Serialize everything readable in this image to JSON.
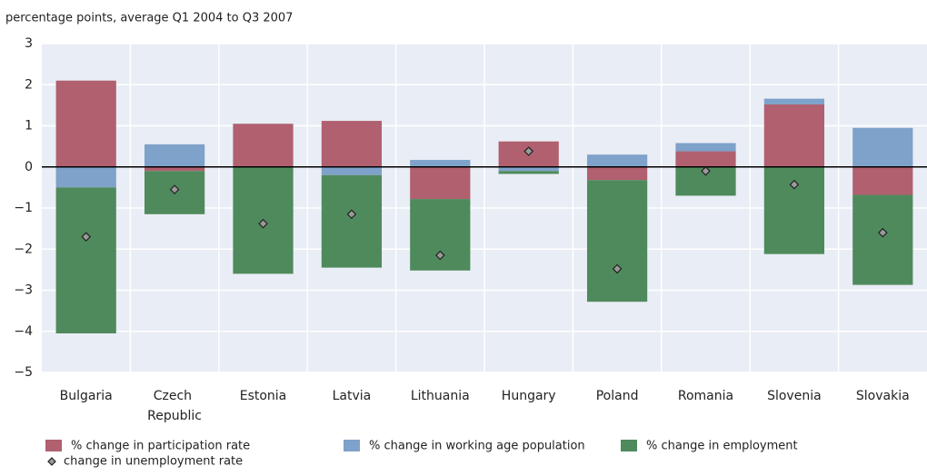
{
  "chart_data": {
    "type": "bar",
    "stacked": true,
    "subtitle": "percentage points, average Q1 2004 to Q3 2007",
    "categories": [
      "Bulgaria",
      "Czech Republic",
      "Estonia",
      "Latvia",
      "Lithuania",
      "Hungary",
      "Poland",
      "Romania",
      "Slovenia",
      "Slovakia"
    ],
    "series": [
      {
        "name": "% change in participation rate",
        "color": "#b0606f",
        "values": [
          2.1,
          -0.1,
          1.05,
          1.12,
          -0.78,
          0.62,
          -0.32,
          0.38,
          1.52,
          -0.68
        ]
      },
      {
        "name": "% change in working age population",
        "color": "#7ea2c9",
        "values": [
          -0.5,
          0.55,
          0,
          -0.2,
          0.17,
          -0.1,
          0.3,
          0.2,
          0.14,
          0.95
        ]
      },
      {
        "name": "% change in employment",
        "color": "#4f8a5c",
        "values": [
          -3.55,
          -1.05,
          -2.6,
          -2.25,
          -1.74,
          -0.07,
          -2.96,
          -0.7,
          -2.12,
          -2.19
        ]
      },
      {
        "name": "change in unemployment rate",
        "type": "scatter",
        "marker": "diamond",
        "color": "#9a9a9a",
        "values": [
          -1.7,
          -0.55,
          -1.38,
          -1.15,
          -2.15,
          0.38,
          -2.48,
          -0.1,
          -0.43,
          -1.6
        ]
      }
    ],
    "ylim": [
      -5,
      3
    ],
    "yticks": [
      {
        "value": -5,
        "label": "−5"
      },
      {
        "value": -4,
        "label": "−4"
      },
      {
        "value": -3,
        "label": "−3"
      },
      {
        "value": -2,
        "label": "−2"
      },
      {
        "value": -1,
        "label": "−1"
      },
      0,
      1,
      2,
      3
    ],
    "grid": true,
    "legend": "bottom",
    "background": "#e9edf5"
  }
}
